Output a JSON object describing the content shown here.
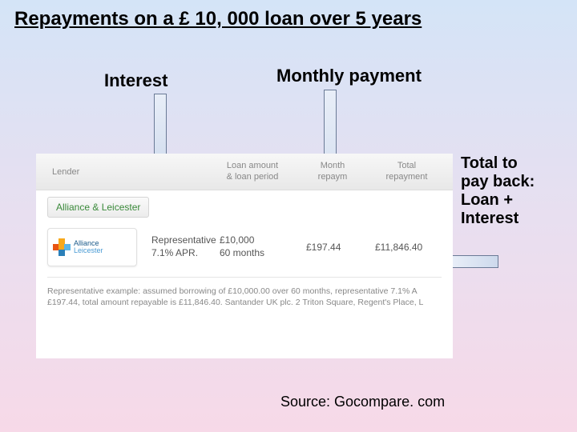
{
  "title": "Repayments on a £ 10, 000 loan over 5 years",
  "labels": {
    "interest": "Interest",
    "monthly": "Monthly payment",
    "total": "Total to\npay back:\nLoan +\nInterest"
  },
  "source": "Source: Gocompare. com",
  "table": {
    "headers": {
      "lender": "Lender",
      "apr": "",
      "amount": "Loan amount\n& loan period",
      "monthly": "Month\nrepaym",
      "total": "Total\nrepayment"
    },
    "lender_name": "Alliance & Leicester",
    "logo": {
      "line1": "Alliance",
      "line2": "Leicester"
    },
    "row": {
      "apr_label": "Representative",
      "apr_value": "7.1% APR.",
      "amount": "£10,000",
      "period": "60 months",
      "monthly": "£197.44",
      "total": "£11,846.40"
    },
    "example": "Representative example: assumed borrowing of £10,000.00 over 60 months, representative 7.1% A\n£197.44, total amount repayable is £11,846.40. Santander UK plc. 2 Triton Square, Regent's Place, L"
  },
  "colors": {
    "lender_green": "#3a8a3a",
    "arrow_fill": "#cdd9ec",
    "arrow_border": "#6a7a96"
  }
}
